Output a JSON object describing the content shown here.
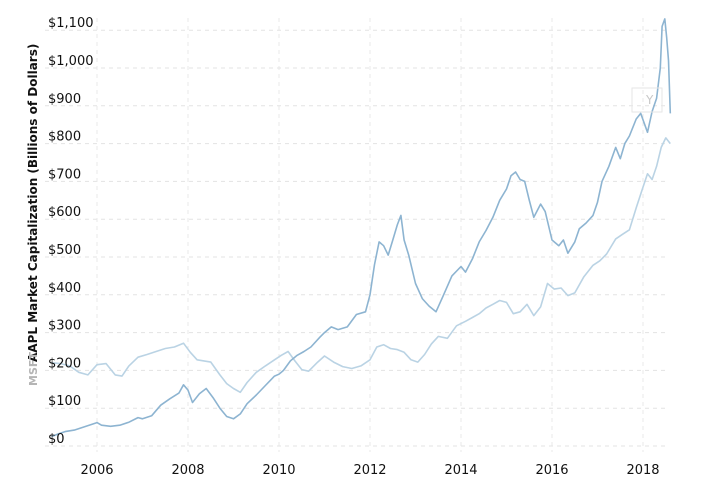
{
  "chart_data": {
    "type": "line",
    "ylabel": "AAPL Market Capitalization (Billions of Dollars)",
    "ylabel_secondary": "MSFT",
    "ghost_label": "Y",
    "ylim": [
      0,
      1150
    ],
    "xlim": [
      2005.0,
      2018.6
    ],
    "grid": true,
    "y_ticks": [
      {
        "value": 0,
        "label": "$0"
      },
      {
        "value": 100,
        "label": "$100"
      },
      {
        "value": 200,
        "label": "$200"
      },
      {
        "value": 300,
        "label": "$300"
      },
      {
        "value": 400,
        "label": "$400"
      },
      {
        "value": 500,
        "label": "$500"
      },
      {
        "value": 600,
        "label": "$600"
      },
      {
        "value": 700,
        "label": "$700"
      },
      {
        "value": 800,
        "label": "$800"
      },
      {
        "value": 900,
        "label": "$900"
      },
      {
        "value": 1000,
        "label": "$1,000"
      },
      {
        "value": 1100,
        "label": "$1,100"
      }
    ],
    "x_ticks": [
      {
        "value": 2006,
        "label": "2006"
      },
      {
        "value": 2008,
        "label": "2008"
      },
      {
        "value": 2010,
        "label": "2010"
      },
      {
        "value": 2012,
        "label": "2012"
      },
      {
        "value": 2014,
        "label": "2014"
      },
      {
        "value": 2016,
        "label": "2016"
      },
      {
        "value": 2018,
        "label": "2018"
      }
    ],
    "series": [
      {
        "name": "AAPL",
        "color": "#8db4d1",
        "points": [
          [
            2005.0,
            25
          ],
          [
            2005.15,
            32
          ],
          [
            2005.3,
            38
          ],
          [
            2005.5,
            42
          ],
          [
            2005.7,
            50
          ],
          [
            2005.9,
            58
          ],
          [
            2006.0,
            62
          ],
          [
            2006.1,
            55
          ],
          [
            2006.3,
            52
          ],
          [
            2006.5,
            55
          ],
          [
            2006.7,
            63
          ],
          [
            2006.9,
            75
          ],
          [
            2007.0,
            72
          ],
          [
            2007.2,
            80
          ],
          [
            2007.4,
            108
          ],
          [
            2007.6,
            125
          ],
          [
            2007.8,
            140
          ],
          [
            2007.9,
            162
          ],
          [
            2008.0,
            148
          ],
          [
            2008.1,
            115
          ],
          [
            2008.25,
            138
          ],
          [
            2008.4,
            152
          ],
          [
            2008.55,
            128
          ],
          [
            2008.7,
            100
          ],
          [
            2008.85,
            78
          ],
          [
            2009.0,
            72
          ],
          [
            2009.15,
            85
          ],
          [
            2009.3,
            112
          ],
          [
            2009.5,
            135
          ],
          [
            2009.7,
            160
          ],
          [
            2009.9,
            185
          ],
          [
            2010.0,
            190
          ],
          [
            2010.1,
            200
          ],
          [
            2010.25,
            225
          ],
          [
            2010.4,
            240
          ],
          [
            2010.55,
            250
          ],
          [
            2010.7,
            262
          ],
          [
            2010.9,
            288
          ],
          [
            2011.0,
            300
          ],
          [
            2011.15,
            315
          ],
          [
            2011.3,
            308
          ],
          [
            2011.5,
            315
          ],
          [
            2011.7,
            348
          ],
          [
            2011.9,
            355
          ],
          [
            2012.0,
            400
          ],
          [
            2012.1,
            480
          ],
          [
            2012.2,
            540
          ],
          [
            2012.3,
            530
          ],
          [
            2012.4,
            505
          ],
          [
            2012.5,
            545
          ],
          [
            2012.6,
            585
          ],
          [
            2012.68,
            610
          ],
          [
            2012.75,
            545
          ],
          [
            2012.85,
            505
          ],
          [
            2013.0,
            430
          ],
          [
            2013.15,
            390
          ],
          [
            2013.3,
            370
          ],
          [
            2013.45,
            355
          ],
          [
            2013.6,
            395
          ],
          [
            2013.8,
            450
          ],
          [
            2014.0,
            475
          ],
          [
            2014.1,
            460
          ],
          [
            2014.25,
            495
          ],
          [
            2014.4,
            540
          ],
          [
            2014.55,
            570
          ],
          [
            2014.7,
            605
          ],
          [
            2014.85,
            650
          ],
          [
            2015.0,
            680
          ],
          [
            2015.1,
            715
          ],
          [
            2015.2,
            725
          ],
          [
            2015.3,
            705
          ],
          [
            2015.4,
            700
          ],
          [
            2015.5,
            650
          ],
          [
            2015.6,
            605
          ],
          [
            2015.75,
            640
          ],
          [
            2015.85,
            620
          ],
          [
            2016.0,
            545
          ],
          [
            2016.15,
            530
          ],
          [
            2016.25,
            545
          ],
          [
            2016.35,
            510
          ],
          [
            2016.5,
            540
          ],
          [
            2016.6,
            575
          ],
          [
            2016.75,
            590
          ],
          [
            2016.9,
            610
          ],
          [
            2017.0,
            645
          ],
          [
            2017.1,
            700
          ],
          [
            2017.25,
            740
          ],
          [
            2017.4,
            790
          ],
          [
            2017.5,
            760
          ],
          [
            2017.6,
            800
          ],
          [
            2017.7,
            820
          ],
          [
            2017.85,
            865
          ],
          [
            2017.95,
            880
          ],
          [
            2018.1,
            830
          ],
          [
            2018.2,
            885
          ],
          [
            2018.3,
            920
          ],
          [
            2018.38,
            1000
          ],
          [
            2018.42,
            1110
          ],
          [
            2018.48,
            1130
          ],
          [
            2018.52,
            1080
          ],
          [
            2018.56,
            1020
          ],
          [
            2018.6,
            880
          ]
        ]
      },
      {
        "name": "MSFT",
        "color": "#bad3e4",
        "points": [
          [
            2005.0,
            220
          ],
          [
            2005.2,
            218
          ],
          [
            2005.4,
            212
          ],
          [
            2005.6,
            195
          ],
          [
            2005.8,
            188
          ],
          [
            2006.0,
            215
          ],
          [
            2006.2,
            218
          ],
          [
            2006.4,
            188
          ],
          [
            2006.55,
            185
          ],
          [
            2006.7,
            212
          ],
          [
            2006.9,
            235
          ],
          [
            2007.1,
            242
          ],
          [
            2007.3,
            250
          ],
          [
            2007.5,
            258
          ],
          [
            2007.7,
            262
          ],
          [
            2007.9,
            272
          ],
          [
            2008.05,
            248
          ],
          [
            2008.2,
            228
          ],
          [
            2008.35,
            225
          ],
          [
            2008.5,
            222
          ],
          [
            2008.7,
            188
          ],
          [
            2008.85,
            165
          ],
          [
            2009.0,
            152
          ],
          [
            2009.15,
            142
          ],
          [
            2009.3,
            168
          ],
          [
            2009.5,
            195
          ],
          [
            2009.7,
            212
          ],
          [
            2009.9,
            228
          ],
          [
            2010.05,
            240
          ],
          [
            2010.2,
            250
          ],
          [
            2010.35,
            225
          ],
          [
            2010.5,
            202
          ],
          [
            2010.65,
            198
          ],
          [
            2010.85,
            222
          ],
          [
            2011.0,
            238
          ],
          [
            2011.2,
            222
          ],
          [
            2011.4,
            210
          ],
          [
            2011.6,
            205
          ],
          [
            2011.8,
            212
          ],
          [
            2012.0,
            228
          ],
          [
            2012.15,
            262
          ],
          [
            2012.3,
            268
          ],
          [
            2012.45,
            258
          ],
          [
            2012.6,
            255
          ],
          [
            2012.75,
            248
          ],
          [
            2012.9,
            228
          ],
          [
            2013.05,
            222
          ],
          [
            2013.2,
            242
          ],
          [
            2013.35,
            270
          ],
          [
            2013.5,
            290
          ],
          [
            2013.7,
            285
          ],
          [
            2013.9,
            318
          ],
          [
            2014.1,
            330
          ],
          [
            2014.25,
            340
          ],
          [
            2014.4,
            350
          ],
          [
            2014.55,
            365
          ],
          [
            2014.7,
            375
          ],
          [
            2014.85,
            385
          ],
          [
            2015.0,
            380
          ],
          [
            2015.15,
            350
          ],
          [
            2015.3,
            355
          ],
          [
            2015.45,
            375
          ],
          [
            2015.6,
            345
          ],
          [
            2015.75,
            368
          ],
          [
            2015.9,
            430
          ],
          [
            2016.05,
            415
          ],
          [
            2016.2,
            418
          ],
          [
            2016.35,
            398
          ],
          [
            2016.5,
            405
          ],
          [
            2016.7,
            448
          ],
          [
            2016.9,
            478
          ],
          [
            2017.05,
            490
          ],
          [
            2017.2,
            508
          ],
          [
            2017.4,
            548
          ],
          [
            2017.55,
            560
          ],
          [
            2017.7,
            572
          ],
          [
            2017.85,
            630
          ],
          [
            2018.0,
            685
          ],
          [
            2018.1,
            720
          ],
          [
            2018.2,
            705
          ],
          [
            2018.3,
            740
          ],
          [
            2018.4,
            790
          ],
          [
            2018.5,
            815
          ],
          [
            2018.6,
            800
          ]
        ]
      }
    ]
  }
}
